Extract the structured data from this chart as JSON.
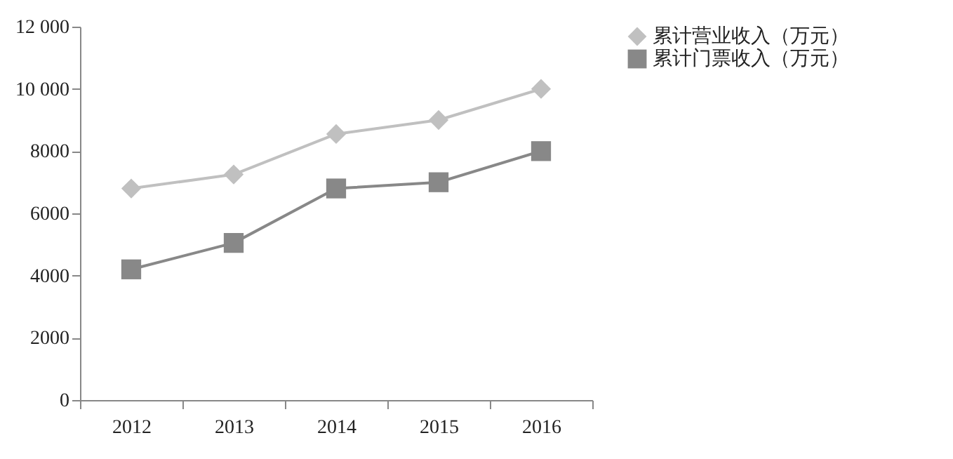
{
  "chart_data": {
    "type": "line",
    "categories": [
      "2012",
      "2013",
      "2014",
      "2015",
      "2016"
    ],
    "series": [
      {
        "name": "累计营业收入（万元）",
        "color": "#c0c0c0",
        "marker": "diamond",
        "values": [
          6800,
          7250,
          8550,
          9000,
          10000
        ]
      },
      {
        "name": "累计门票收入（万元）",
        "color": "#888888",
        "marker": "square",
        "values": [
          4200,
          5050,
          6800,
          7000,
          8000
        ]
      }
    ],
    "ylim": [
      0,
      12000
    ],
    "yticks": [
      0,
      2000,
      4000,
      6000,
      8000,
      {
        "value": 10000,
        "label": "10 000"
      },
      {
        "value": 12000,
        "label": "12 000"
      }
    ],
    "grid": false,
    "legend": "right",
    "line_style": "solid"
  }
}
